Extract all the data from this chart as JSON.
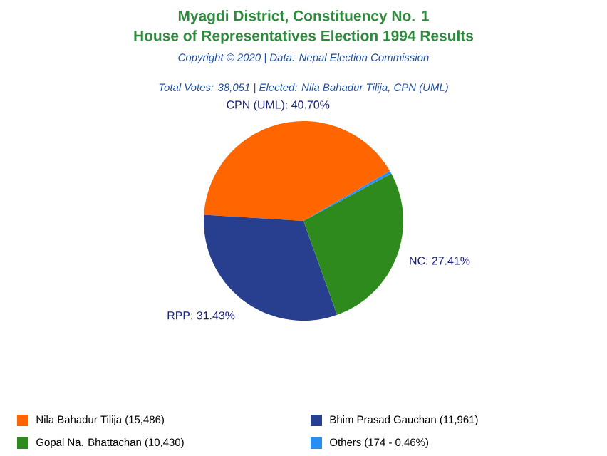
{
  "chart_data": {
    "type": "pie",
    "title": "Myagdi District, Constituency No. 1",
    "subtitle": "House of Representatives Election 1994 Results",
    "annotations": [
      "Copyright © 2020 | Data: Nepal Election Commission",
      "Total Votes: 38,051 | Elected: Nila Bahadur Tilija, CPN (UML)"
    ],
    "categories": [
      "Nila Bahadur Tilija (15,486)",
      "Bhim Prasad Gauchan (11,961)",
      "Gopal Na. Bhattachan (10,430)",
      "Others (174 - 0.46%)"
    ],
    "values": [
      40.7,
      31.43,
      27.41,
      0.46
    ],
    "colors": [
      "#ff6600",
      "#283f8f",
      "#2f8a1d",
      "#2a8ef0"
    ],
    "value_labels": [
      "CPN (UML): 40.70%",
      "RPP: 31.43%",
      "NC: 27.41%",
      null
    ],
    "legend": "bottom"
  }
}
